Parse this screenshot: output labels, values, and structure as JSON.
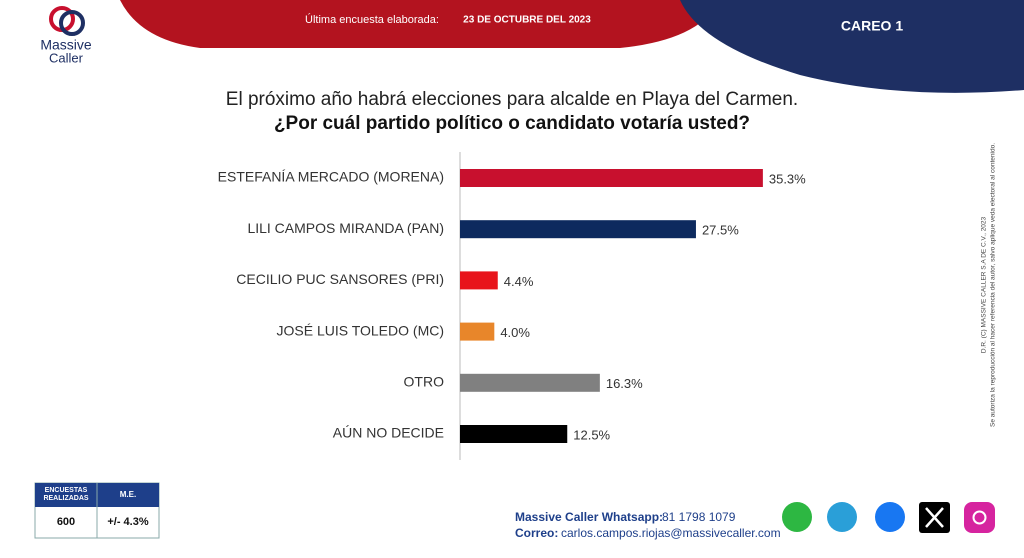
{
  "header": {
    "label": "Última encuesta elaborada:",
    "date": "23 DE OCTUBRE DEL 2023",
    "tag": "CAREO 1"
  },
  "logo": {
    "line1": "Massive",
    "line2": "Caller"
  },
  "chart_data": {
    "type": "bar",
    "orientation": "horizontal",
    "title": "El próximo año habrá elecciones para alcalde en Playa del Carmen.",
    "subtitle": "¿Por cuál partido político o candidato votaría usted?",
    "categories": [
      "ESTEFANÍA MERCADO (MORENA)",
      "LILI CAMPOS MIRANDA (PAN)",
      "CECILIO PUC SANSORES (PRI)",
      "JOSÉ LUIS TOLEDO (MC)",
      "OTRO",
      "AÚN NO DECIDE"
    ],
    "values": [
      35.3,
      27.5,
      4.4,
      4.0,
      16.3,
      12.5
    ],
    "value_labels": [
      "35.3%",
      "27.5%",
      "4.4%",
      "4.0%",
      "16.3%",
      "12.5%"
    ],
    "colors": [
      "#c8102e",
      "#0d2a5e",
      "#e8141b",
      "#e8862a",
      "#808080",
      "#000000"
    ]
  },
  "side_note": {
    "line1": "D.R. (C) MASSIVE CALLER S.A DE C.V., 2023",
    "line2": "Se autoriza la reproducción al hacer referencia del autor, salvo aplique veda electoral al contenido."
  },
  "table": {
    "header": [
      "ENCUESTAS REALIZADAS",
      "M.E."
    ],
    "row": [
      "600",
      "+/- 4.3%"
    ]
  },
  "footer": {
    "whatsapp_label": "Massive Caller Whatsapp:",
    "whatsapp": "81 1798 1079",
    "email_label": "Correo:",
    "email": "carlos.campos.riojas@massivecaller.com"
  }
}
